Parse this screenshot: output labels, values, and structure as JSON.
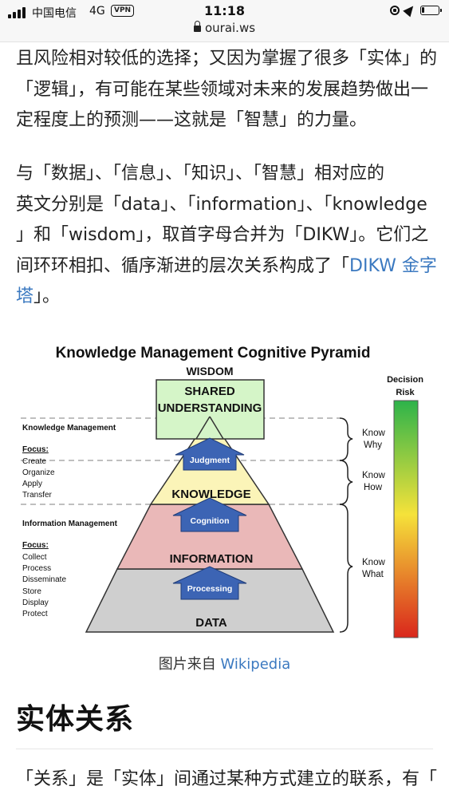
{
  "status_bar": {
    "carrier": "中国电信",
    "network": "4G",
    "vpn": "VPN",
    "time": "11:18",
    "url": "ourai.ws"
  },
  "article": {
    "para1": [
      "且风险相对较低的选择；又因为掌握了很多「实体」的",
      "「逻辑」，有可能在某些领域对未来的发展趋势做出一",
      "定程度上的预测——这就是「智慧」的力量。"
    ],
    "para2_line1": "与「数据」、「信息」、「知识」、「智慧」相对应的",
    "para2_line2": "英文分别是「data」、「information」、「knowledge",
    "para2_line3": "」和「wisdom」，取首字母合并为「DIKW」。它们之",
    "para2_line4_text": "间环环相扣、循序渐进的层次关系构成了「",
    "para2_link_a": "DIKW 金字",
    "para2_link_b": "塔",
    "para2_line5_text": "」。",
    "caption_text": "图片来自 ",
    "caption_link": "Wikipedia",
    "heading": "实体关系",
    "para3": "「关系」是「实体」间通过某种方式建立的联系，有「"
  },
  "figure": {
    "title": "Knowledge Management Cognitive Pyramid",
    "wisdom_label": "WISDOM",
    "shared_line1": "SHARED",
    "shared_line2": "UNDERSTANDING",
    "knowledge": "KNOWLEDGE",
    "information": "INFORMATION",
    "data": "DATA",
    "arrow_judgment": "Judgment",
    "arrow_cognition": "Cognition",
    "arrow_processing": "Processing",
    "km_title": "Knowledge Management",
    "km_focus_label": "Focus:",
    "km_focus_items": [
      "Create",
      "Organize",
      "Apply",
      "Transfer"
    ],
    "im_title": "Information Management",
    "im_focus_label": "Focus:",
    "im_focus_items": [
      "Collect",
      "Process",
      "Disseminate",
      "Store",
      "Display",
      "Protect"
    ],
    "know_why": [
      "Know",
      "Why"
    ],
    "know_how": [
      "Know",
      "How"
    ],
    "know_what": [
      "Know",
      "What"
    ],
    "decision": "Decision",
    "risk": "Risk",
    "colors": {
      "shared_fill": "#d5f5c8",
      "knowledge_fill": "#fbf4b8",
      "information_fill": "#eab8b8",
      "data_fill": "#cfcfcf",
      "arrow_blue": "#3c64b4",
      "risk_top": "#2db34a",
      "risk_mid": "#f5e23a",
      "risk_bottom": "#d9261c"
    }
  }
}
